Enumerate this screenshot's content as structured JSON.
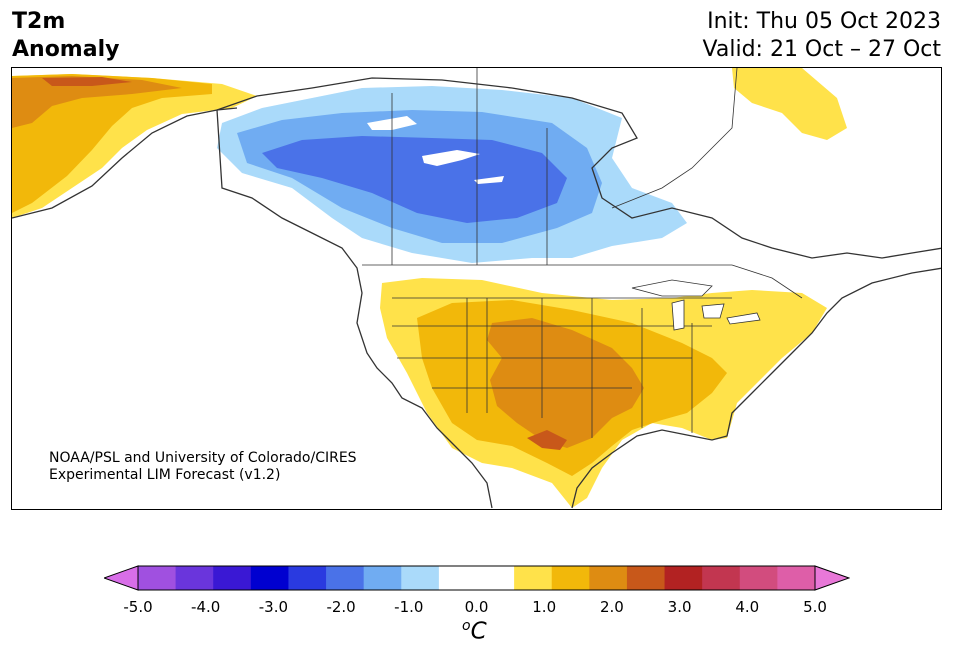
{
  "header": {
    "title_line1": "T2m",
    "title_line2": "Anomaly",
    "init": "Init: Thu 05 Oct 2023",
    "valid": "Valid: 21 Oct – 27 Oct"
  },
  "credit": {
    "line1": "NOAA/PSL and University of Colorado/CIRES",
    "line2": "Experimental LIM Forecast (v1.2)"
  },
  "colorbar": {
    "ticks": [
      "-5.0",
      "-4.0",
      "-3.0",
      "-2.0",
      "-1.0",
      "0.0",
      "1.0",
      "2.0",
      "3.0",
      "4.0",
      "5.0"
    ],
    "unit_sup": "o",
    "unit": "C",
    "colors": [
      "#d86ee8",
      "#a050e0",
      "#6a35dc",
      "#3a18d4",
      "#0000d0",
      "#2a3ae0",
      "#4a72e8",
      "#70acf2",
      "#aadafa",
      "#ffffff",
      "#ffffff",
      "#ffe24a",
      "#f2b80a",
      "#de8c12",
      "#c8581a",
      "#b22222",
      "#c23650",
      "#d24c7e",
      "#de5ea8",
      "#e878d8"
    ]
  },
  "map": {
    "region": "North America",
    "anomaly_colors": {
      "cold_1": "#aadafa",
      "cold_2": "#70acf2",
      "cold_3": "#4a72e8",
      "warm_1": "#ffe24a",
      "warm_2": "#f2b80a",
      "warm_3": "#de8c12",
      "warm_4": "#c8581a"
    }
  }
}
